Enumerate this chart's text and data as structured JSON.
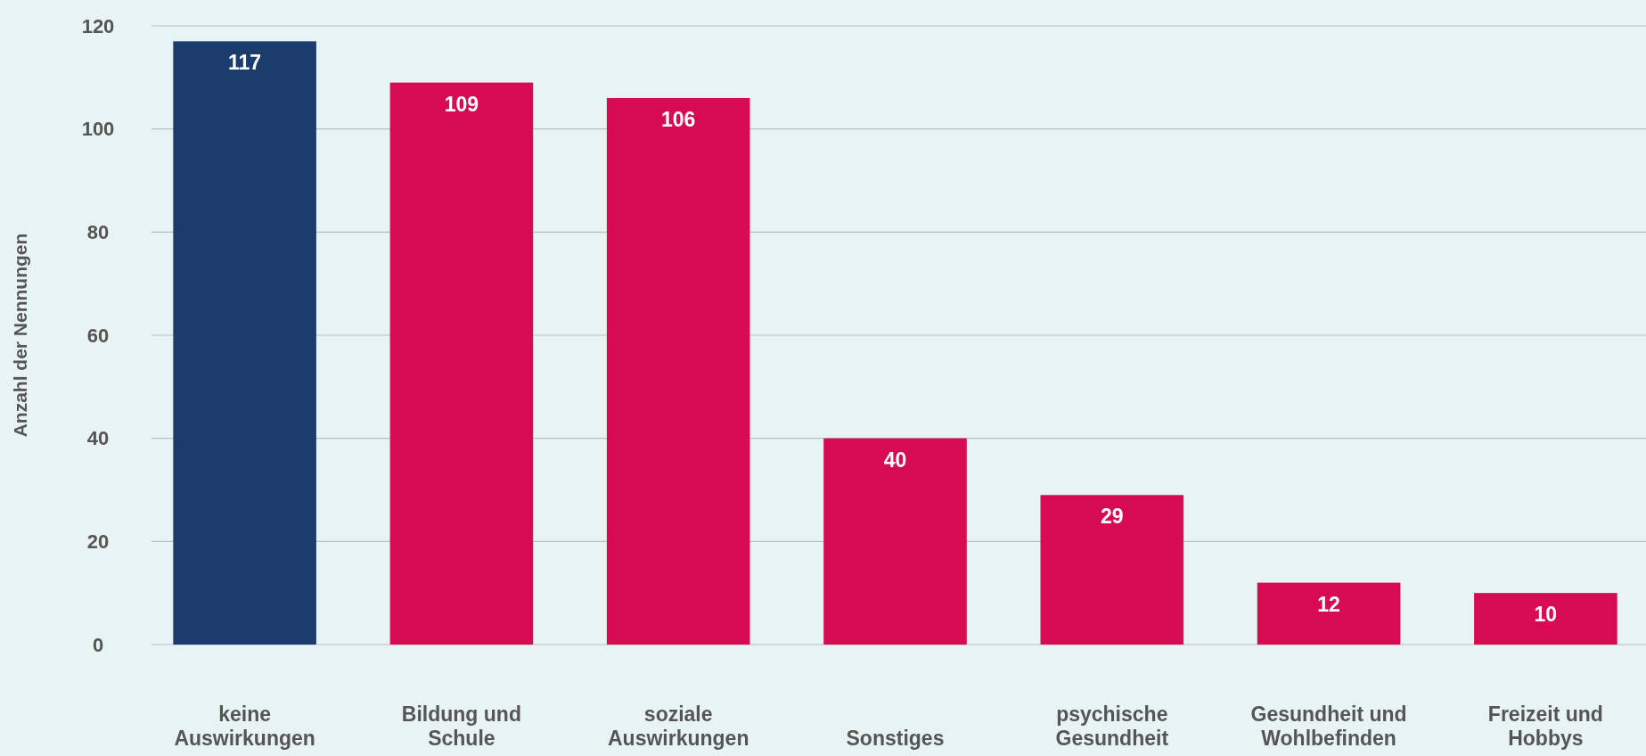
{
  "chart_data": {
    "type": "bar",
    "ylabel": "Anzahl der Nennungen",
    "categories": [
      "keine Auswirkungen",
      "Bildung und Schule",
      "soziale Auswirkungen",
      "Sonstiges",
      "psychische Gesundheit",
      "Gesundheit und Wohlbefinden",
      "Freizeit und Hobbys"
    ],
    "values": [
      117,
      109,
      106,
      40,
      29,
      12,
      10
    ],
    "colors": [
      "#1d3c6e",
      "#d60b51",
      "#d60b51",
      "#d60b51",
      "#d60b51",
      "#d60b51",
      "#d60b51"
    ],
    "ylim": [
      0,
      120
    ],
    "yticks": [
      0,
      20,
      40,
      60,
      80,
      100,
      120
    ],
    "grid": "y",
    "data_labels": true
  }
}
